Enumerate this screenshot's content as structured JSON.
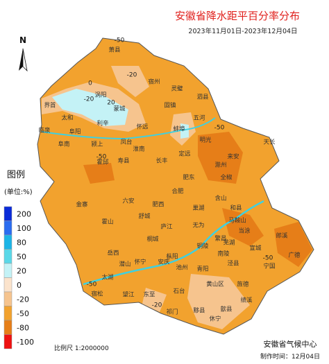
{
  "header": {
    "title": "安徽省降水距平百分率分布",
    "subtitle": "2023年11月01日-2023年12月04日"
  },
  "north": "N",
  "legend": {
    "title": "图例",
    "unit": "(单位:%)",
    "items": [
      {
        "label": 200,
        "color": "#0a2bd8"
      },
      {
        "label": 100,
        "color": "#2a6cf0"
      },
      {
        "label": 80,
        "color": "#1cb4e6"
      },
      {
        "label": 50,
        "color": "#5ad8e8"
      },
      {
        "label": 20,
        "color": "#c4f2f6"
      },
      {
        "label": 0,
        "color": "#fbe3cc"
      },
      {
        "label": -20,
        "color": "#f6c48e"
      },
      {
        "label": -50,
        "color": "#f2a22e"
      },
      {
        "label": -80,
        "color": "#e67e18"
      },
      {
        "label": -100,
        "color": "#ee1111"
      }
    ]
  },
  "places": [
    "萧县",
    "宿州",
    "灵璧",
    "泗县",
    "涡阳",
    "蒙城",
    "界首",
    "太和",
    "临泉",
    "阜阳",
    "阜南",
    "利辛",
    "颍上",
    "凤台",
    "淮南",
    "寿县",
    "霍邱",
    "怀远",
    "固镇",
    "五河",
    "蚌埠",
    "明光",
    "天长",
    "来安",
    "滁州",
    "全椒",
    "定远",
    "长丰",
    "合肥",
    "肥东",
    "肥西",
    "六安",
    "金寨",
    "霍山",
    "舒城",
    "庐江",
    "巢湖",
    "含山",
    "和县",
    "马鞍山",
    "当涂",
    "芜湖",
    "无为",
    "繁昌",
    "郎溪",
    "宣城",
    "广德",
    "宁国",
    "泾县",
    "南陵",
    "铜陵",
    "枞阳",
    "桐城",
    "岳西",
    "潜山",
    "怀宁",
    "安庆",
    "太湖",
    "宿松",
    "望江",
    "东至",
    "池州",
    "青阳",
    "石台",
    "黄山区",
    "旌德",
    "绩溪",
    "歙县",
    "黟县",
    "祁门",
    "休宁"
  ],
  "contours": [
    "-50",
    "-20",
    "0",
    "20",
    "-20",
    "-50",
    "-50",
    "-50",
    "-50",
    "-20"
  ],
  "scale": "比例尺  1:2000000",
  "footer": {
    "org": "安徽省气候中心",
    "date": "制作时间：12月04日"
  }
}
